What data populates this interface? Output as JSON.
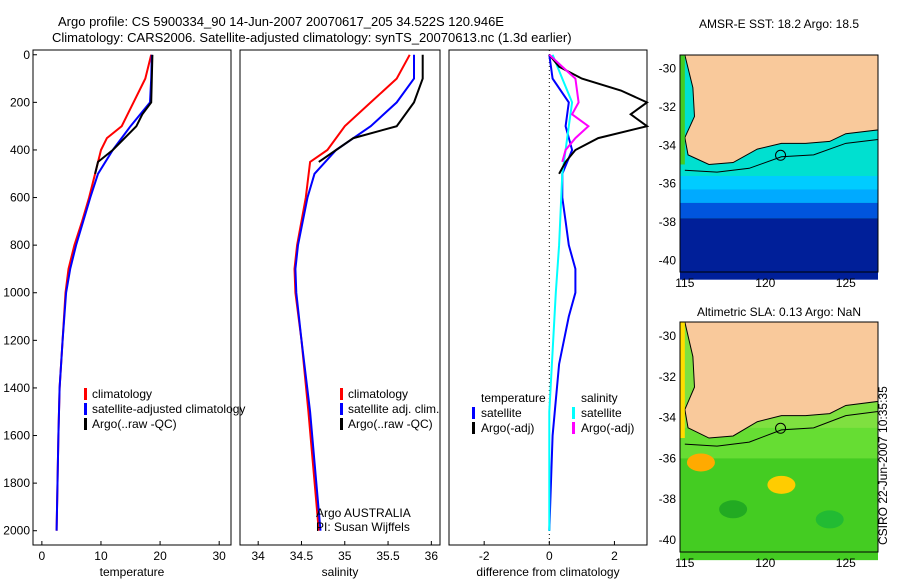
{
  "title": {
    "line1": "Argo profile: CS 5900334_90 14-Jun-2007 20070617_205 34.522S 120.946E",
    "line2": "Climatology: CARS2006. Satellite-adjusted climatology: synTS_20070613.nc (1.3d earlier)"
  },
  "side_label": "CSIRO 22-Jun-2007 10:35:35",
  "chart_data": [
    {
      "type": "line",
      "id": "temp",
      "xlabel": "temperature",
      "xlim": [
        -1.5,
        32
      ],
      "ylim": [
        2060,
        -20
      ],
      "xticks": [
        0,
        10,
        20,
        30
      ],
      "yticks": [
        0,
        200,
        400,
        600,
        800,
        1000,
        1200,
        1400,
        1600,
        1800,
        2000
      ],
      "legend": [
        {
          "label": "climatology",
          "color": "#ff0000"
        },
        {
          "label": "satellite-adjusted climatology",
          "color": "#0000ff"
        },
        {
          "label": "Argo(..raw -QC)",
          "color": "#000000"
        }
      ],
      "series": [
        {
          "name": "climatology",
          "color": "#ff0000",
          "depth": [
            0,
            100,
            200,
            300,
            350,
            400,
            500,
            600,
            700,
            800,
            900,
            1000,
            1200,
            1400,
            1600,
            2000
          ],
          "values": [
            18.5,
            17.5,
            15.5,
            13.5,
            11,
            10,
            9,
            8,
            6.8,
            5.5,
            4.5,
            4,
            3.5,
            3,
            2.8,
            2.5
          ]
        },
        {
          "name": "satellite-adjusted climatology",
          "color": "#0000ff",
          "depth": [
            0,
            100,
            200,
            300,
            400,
            500,
            600,
            700,
            800,
            900,
            1000,
            1200,
            1400,
            1600,
            2000
          ],
          "values": [
            18.6,
            18.5,
            18.3,
            15,
            12,
            9.5,
            8.2,
            7,
            5.8,
            4.8,
            4.1,
            3.5,
            3,
            2.8,
            2.5
          ]
        },
        {
          "name": "Argo",
          "color": "#000000",
          "depth": [
            0,
            100,
            200,
            250,
            300,
            400,
            450,
            500
          ],
          "values": [
            18.7,
            18.6,
            18.5,
            17,
            16,
            12,
            9.5,
            9
          ]
        }
      ]
    },
    {
      "type": "line",
      "id": "sal",
      "xlabel": "salinity",
      "xlim": [
        33.79,
        36.1
      ],
      "ylim": [
        2060,
        -20
      ],
      "xticks": [
        34,
        34.5,
        35,
        35.5,
        36
      ],
      "yticks": [],
      "legend": [
        {
          "label": "climatology",
          "color": "#ff0000"
        },
        {
          "label": "satellite adj. clim.",
          "color": "#0000ff"
        },
        {
          "label": "Argo(..raw -QC)",
          "color": "#000000"
        }
      ],
      "annotation": [
        "Argo AUSTRALIA",
        "PI: Susan Wijffels"
      ],
      "series": [
        {
          "name": "climatology",
          "color": "#ff0000",
          "depth": [
            0,
            100,
            200,
            300,
            400,
            450,
            600,
            800,
            900,
            1000,
            1200,
            1500,
            2000
          ],
          "values": [
            35.75,
            35.6,
            35.3,
            35.0,
            34.8,
            34.6,
            34.55,
            34.45,
            34.42,
            34.43,
            34.5,
            34.58,
            34.7
          ]
        },
        {
          "name": "satellite adj. clim.",
          "color": "#0000ff",
          "depth": [
            0,
            100,
            200,
            300,
            400,
            500,
            600,
            800,
            900,
            1000,
            1200,
            1500,
            2000
          ],
          "values": [
            35.8,
            35.8,
            35.6,
            35.3,
            34.9,
            34.65,
            34.57,
            34.46,
            34.43,
            34.44,
            34.5,
            34.6,
            34.72
          ]
        },
        {
          "name": "Argo",
          "color": "#000000",
          "depth": [
            0,
            100,
            200,
            300,
            350,
            400,
            450
          ],
          "values": [
            35.9,
            35.9,
            35.8,
            35.6,
            35.1,
            34.9,
            34.7
          ]
        }
      ]
    },
    {
      "type": "line",
      "id": "diff",
      "xlabel": "difference from climatology",
      "xlim": [
        -3.08,
        3.0
      ],
      "ylim": [
        2060,
        -20
      ],
      "xticks": [
        -2,
        0,
        2
      ],
      "yticks": [],
      "legend_titles": [
        "temperature",
        "salinity"
      ],
      "legend": [
        {
          "label": "satellite",
          "color": "#0000ff"
        },
        {
          "label": "Argo(-adj)",
          "color": "#000000"
        },
        {
          "label": "satellite",
          "color": "#00ffff"
        },
        {
          "label": "Argo(-adj)",
          "color": "#ff00ff"
        }
      ],
      "series": [
        {
          "name": "temperature satellite",
          "color": "#0000ff",
          "depth": [
            0,
            100,
            200,
            300,
            400,
            500,
            600,
            700,
            800,
            900,
            1000,
            1100,
            1300,
            1600,
            2000
          ],
          "values": [
            0,
            0.1,
            0.6,
            0.5,
            0.7,
            0.4,
            0.4,
            0.5,
            0.6,
            0.8,
            0.8,
            0.6,
            0.3,
            0.1,
            0
          ]
        },
        {
          "name": "salinity satellite",
          "color": "#00ffff",
          "depth": [
            0,
            100,
            200,
            300,
            400,
            500,
            800,
            1000,
            1500,
            2000
          ],
          "values": [
            0.1,
            0.4,
            0.7,
            0.6,
            0.5,
            0.4,
            0.3,
            0.2,
            0,
            0
          ]
        },
        {
          "name": "temperature Argo",
          "color": "#000000",
          "depth": [
            0,
            50,
            100,
            150,
            200,
            250,
            300,
            350,
            400,
            450,
            500
          ],
          "values": [
            0,
            0.3,
            1,
            2.2,
            3,
            2.5,
            3,
            1.5,
            0.8,
            0.5,
            0.3
          ]
        },
        {
          "name": "salinity Argo",
          "color": "#ff00ff",
          "depth": [
            0,
            50,
            100,
            200,
            250,
            300,
            350,
            400,
            450
          ],
          "values": [
            0,
            0.4,
            0.8,
            0.9,
            0.7,
            1.2,
            0.8,
            0.5,
            0.4
          ]
        }
      ]
    },
    {
      "type": "heatmap",
      "id": "map1",
      "title": "AMSR-E SST: 18.2 Argo: 18.5",
      "xticks": [
        115,
        120,
        125
      ],
      "yticks": [
        -30,
        -32,
        -34,
        -36,
        -38,
        -40
      ],
      "xlim": [
        114.7,
        127
      ],
      "ylim": [
        -29.3,
        -40.6
      ],
      "float": [
        120.946,
        -34.522
      ]
    },
    {
      "type": "heatmap",
      "id": "map2",
      "title": "Altimetric SLA: 0.13 Argo: NaN",
      "xticks": [
        115,
        120,
        125
      ],
      "yticks": [
        -30,
        -32,
        -34,
        -36,
        -38,
        -40
      ],
      "xlim": [
        114.7,
        127
      ],
      "ylim": [
        -29.3,
        -40.6
      ],
      "float": [
        120.946,
        -34.522
      ]
    }
  ]
}
